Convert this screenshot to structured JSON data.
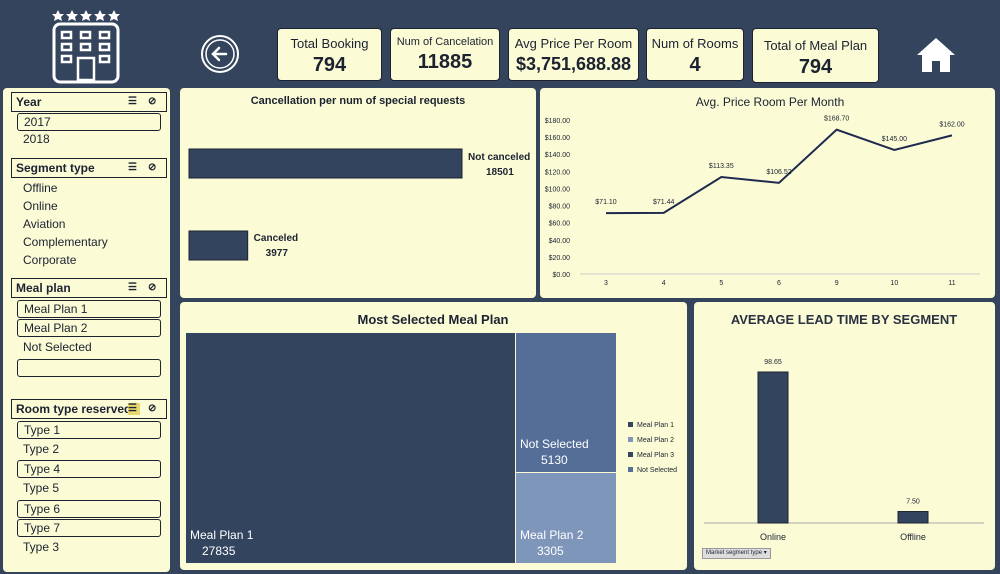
{
  "kpis": {
    "total_booking": {
      "label": "Total Booking",
      "value": "794"
    },
    "num_cancelation": {
      "label": "Num of Cancelation",
      "value": "11885"
    },
    "avg_price": {
      "label": "Avg Price Per Room",
      "value": "$3,751,688.88"
    },
    "num_rooms": {
      "label": "Num of Rooms",
      "value": "4"
    },
    "total_meal_plan": {
      "label": "Total of Meal Plan",
      "value": "794"
    }
  },
  "slicers": {
    "year": {
      "title": "Year",
      "items": [
        "2017",
        "2018"
      ]
    },
    "segment": {
      "title": "Segment type",
      "items": [
        "Offline",
        "Online",
        "Aviation",
        "Complementary",
        "Corporate"
      ]
    },
    "meal": {
      "title": "Meal plan",
      "items": [
        "Meal Plan 1",
        "Meal Plan 2",
        "Not Selected",
        ""
      ]
    },
    "room": {
      "title": "Room type reserved",
      "items": [
        "Type 1",
        "Type 2",
        "Type 4",
        "Type 5",
        "Type 6",
        "Type 7",
        "Type 3"
      ]
    }
  },
  "colors": {
    "background": "#34445c",
    "card": "#fbfbd6",
    "bar": "#33445e",
    "meal2": "#7f96bb",
    "not_selected": "#546e98"
  },
  "chart_data": [
    {
      "type": "bar",
      "title": "Cancellation per num of special requests",
      "categories": [
        "Not canceled",
        "Canceled"
      ],
      "values": [
        18501,
        3977
      ]
    },
    {
      "type": "line",
      "title": "Avg. Price Room Per Month",
      "x": [
        "3",
        "4",
        "5",
        "6",
        "9",
        "10",
        "11"
      ],
      "values": [
        71.1,
        71.44,
        113.35,
        106.52,
        168.7,
        145.0,
        162.0
      ],
      "labels": [
        "$71.10",
        "$71.44",
        "$113.35",
        "$106.52",
        "$168.70",
        "$145.00",
        "$162.00"
      ],
      "yticks": [
        "$0.00",
        "$20.00",
        "$40.00",
        "$60.00",
        "$80.00",
        "$100.00",
        "$120.00",
        "$140.00",
        "$160.00",
        "$180.00"
      ],
      "ylim": [
        0,
        180
      ]
    },
    {
      "type": "treemap",
      "title": "Most Selected Meal Plan",
      "categories": [
        "Meal Plan 1",
        "Not Selected",
        "Meal Plan 2"
      ],
      "values": [
        27835,
        5130,
        3305
      ],
      "legend": [
        "Meal Plan 1",
        "Meal Plan 2",
        "Meal Plan 3",
        "Not Selected"
      ]
    },
    {
      "type": "bar",
      "title": "AVERAGE LEAD TIME BY SEGMENT",
      "categories": [
        "Online",
        "Offline"
      ],
      "values": [
        98.65,
        7.5
      ],
      "labels": [
        "98.65",
        "7.50"
      ],
      "filter_label": "Market segment type"
    }
  ]
}
